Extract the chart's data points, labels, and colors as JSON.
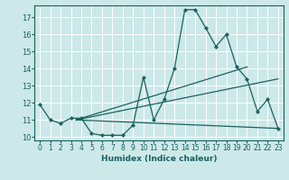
{
  "xlabel": "Humidex (Indice chaleur)",
  "bg_color": "#cce8e8",
  "grid_color": "#ffffff",
  "line_color": "#1a6060",
  "xlim": [
    -0.5,
    23.5
  ],
  "ylim": [
    9.8,
    17.7
  ],
  "xticks": [
    0,
    1,
    2,
    3,
    4,
    5,
    6,
    7,
    8,
    9,
    10,
    11,
    12,
    13,
    14,
    15,
    16,
    17,
    18,
    19,
    20,
    21,
    22,
    23
  ],
  "yticks": [
    10,
    11,
    12,
    13,
    14,
    15,
    16,
    17
  ],
  "main_x": [
    0,
    1,
    2,
    3,
    4,
    5,
    6,
    7,
    8,
    9,
    10,
    11,
    12,
    13,
    14,
    15,
    16,
    17,
    18,
    19,
    20,
    21,
    22,
    23
  ],
  "main_y": [
    11.9,
    11.0,
    10.8,
    11.1,
    11.1,
    10.2,
    10.1,
    10.1,
    10.1,
    10.7,
    13.5,
    11.0,
    12.2,
    14.0,
    17.45,
    17.45,
    16.4,
    15.3,
    16.0,
    14.1,
    13.4,
    11.5,
    12.2,
    10.5
  ],
  "line1_x": [
    3.5,
    23
  ],
  "line1_y": [
    11.0,
    10.5
  ],
  "line2_x": [
    3.5,
    23
  ],
  "line2_y": [
    11.0,
    13.4
  ],
  "line3_x": [
    3.5,
    20
  ],
  "line3_y": [
    11.0,
    14.1
  ]
}
